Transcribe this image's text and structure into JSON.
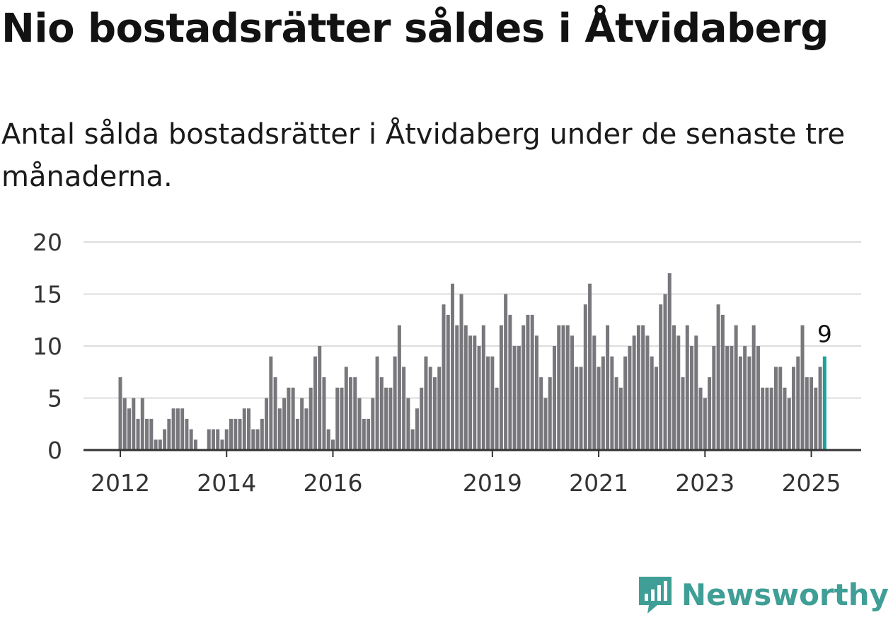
{
  "title": "Nio bostadsrätter såldes i Åtvidaberg",
  "subtitle": "Antal sålda bostadsrätter i Åtvidaberg under de senaste tre månaderna.",
  "brand": {
    "name": "Newsworthy",
    "icon": "newsworthy-logo-icon",
    "color": "#3f9e96"
  },
  "colors": {
    "bar": "#78777c",
    "highlight": "#1aa39a",
    "grid": "#dddddd",
    "axis": "#333333"
  },
  "chart_data": {
    "type": "bar",
    "title": "",
    "xlabel": "",
    "ylabel": "",
    "ylim": [
      0,
      20
    ],
    "yticks": [
      0,
      5,
      10,
      15,
      20
    ],
    "x_tick_labels": [
      {
        "label": "2012",
        "index": 0
      },
      {
        "label": "2014",
        "index": 24
      },
      {
        "label": "2016",
        "index": 48
      },
      {
        "label": "2019",
        "index": 84
      },
      {
        "label": "2021",
        "index": 108
      },
      {
        "label": "2023",
        "index": 132
      },
      {
        "label": "2025",
        "index": 156
      }
    ],
    "start_month": "2012-01",
    "values": [
      7,
      5,
      4,
      5,
      3,
      5,
      3,
      3,
      1,
      1,
      2,
      3,
      4,
      4,
      4,
      3,
      2,
      1,
      0,
      0,
      2,
      2,
      2,
      1,
      2,
      3,
      3,
      3,
      4,
      4,
      2,
      2,
      3,
      5,
      9,
      7,
      4,
      5,
      6,
      6,
      3,
      5,
      4,
      6,
      9,
      10,
      7,
      2,
      1,
      6,
      6,
      8,
      7,
      7,
      5,
      3,
      3,
      5,
      9,
      7,
      6,
      6,
      9,
      12,
      8,
      5,
      2,
      4,
      6,
      9,
      8,
      7,
      8,
      14,
      13,
      16,
      12,
      15,
      12,
      11,
      11,
      10,
      12,
      9,
      9,
      6,
      12,
      15,
      13,
      10,
      10,
      12,
      13,
      13,
      11,
      7,
      5,
      7,
      10,
      12,
      12,
      12,
      11,
      8,
      8,
      14,
      16,
      11,
      8,
      9,
      12,
      9,
      7,
      6,
      9,
      10,
      11,
      12,
      12,
      11,
      9,
      8,
      14,
      15,
      17,
      12,
      11,
      7,
      12,
      10,
      11,
      6,
      5,
      7,
      10,
      14,
      13,
      10,
      10,
      12,
      9,
      10,
      9,
      12,
      10,
      6,
      6,
      6,
      8,
      8,
      6,
      5,
      8,
      9,
      12,
      7,
      7,
      6,
      8,
      9
    ],
    "highlight_index": 159,
    "annotation": {
      "index": 159,
      "text": "9"
    }
  }
}
